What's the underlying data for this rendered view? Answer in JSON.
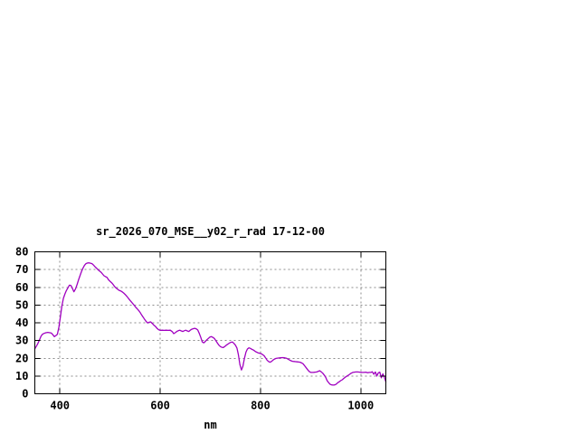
{
  "window": {
    "background": "#ffffff"
  },
  "chart_data": {
    "type": "line",
    "title": "sr_2026_070_MSE__y02_r_rad 17-12-00",
    "xlabel": "nm",
    "ylabel": "",
    "xlim": [
      350,
      1050
    ],
    "ylim": [
      0,
      80
    ],
    "xticks": [
      400,
      600,
      800,
      1000
    ],
    "yticks": [
      0,
      10,
      20,
      30,
      40,
      50,
      60,
      70,
      80
    ],
    "grid": true,
    "legend": "none",
    "colors": {
      "line": "#a000c0",
      "grid": "#8c8c8c",
      "frame": "#000000",
      "text": "#000000",
      "background": "#ffffff"
    },
    "series": [
      {
        "name": "sr_2026_070_MSE__y02_r_rad",
        "points": [
          [
            350,
            25.3
          ],
          [
            353,
            26.8
          ],
          [
            356,
            28.3
          ],
          [
            359,
            30.2
          ],
          [
            362,
            32.3
          ],
          [
            365,
            33.5
          ],
          [
            368,
            34.0
          ],
          [
            372,
            34.4
          ],
          [
            376,
            34.6
          ],
          [
            380,
            34.4
          ],
          [
            383,
            34.2
          ],
          [
            386,
            33.2
          ],
          [
            389,
            32.2
          ],
          [
            392,
            32.8
          ],
          [
            395,
            33.5
          ],
          [
            398,
            37.5
          ],
          [
            401,
            43.5
          ],
          [
            404,
            49.5
          ],
          [
            407,
            53.8
          ],
          [
            410,
            56.3
          ],
          [
            413,
            58.2
          ],
          [
            416,
            59.7
          ],
          [
            419,
            61.2
          ],
          [
            422,
            61.0
          ],
          [
            425,
            59.3
          ],
          [
            428,
            57.5
          ],
          [
            431,
            59.0
          ],
          [
            434,
            61.4
          ],
          [
            437,
            64.0
          ],
          [
            440,
            66.5
          ],
          [
            443,
            68.8
          ],
          [
            446,
            70.8
          ],
          [
            449,
            72.4
          ],
          [
            452,
            73.3
          ],
          [
            455,
            73.7
          ],
          [
            458,
            73.8
          ],
          [
            461,
            73.6
          ],
          [
            464,
            73.3
          ],
          [
            467,
            72.5
          ],
          [
            470,
            71.6
          ],
          [
            473,
            70.8
          ],
          [
            476,
            69.9
          ],
          [
            479,
            69.2
          ],
          [
            482,
            68.5
          ],
          [
            485,
            67.5
          ],
          [
            488,
            66.5
          ],
          [
            491,
            66.0
          ],
          [
            494,
            65.6
          ],
          [
            497,
            64.2
          ],
          [
            500,
            63.4
          ],
          [
            503,
            62.6
          ],
          [
            506,
            61.6
          ],
          [
            509,
            60.5
          ],
          [
            512,
            59.6
          ],
          [
            515,
            58.9
          ],
          [
            518,
            58.3
          ],
          [
            521,
            58.0
          ],
          [
            524,
            57.5
          ],
          [
            527,
            56.8
          ],
          [
            530,
            56.0
          ],
          [
            533,
            55.1
          ],
          [
            536,
            54.0
          ],
          [
            539,
            52.9
          ],
          [
            542,
            51.9
          ],
          [
            545,
            50.9
          ],
          [
            548,
            50.0
          ],
          [
            551,
            48.8
          ],
          [
            554,
            47.9
          ],
          [
            557,
            47.0
          ],
          [
            560,
            45.8
          ],
          [
            563,
            44.4
          ],
          [
            566,
            43.2
          ],
          [
            569,
            41.9
          ],
          [
            572,
            40.7
          ],
          [
            575,
            39.9
          ],
          [
            578,
            40.3
          ],
          [
            581,
            40.5
          ],
          [
            584,
            39.7
          ],
          [
            588,
            38.5
          ],
          [
            591,
            37.8
          ],
          [
            594,
            36.8
          ],
          [
            597,
            36.1
          ],
          [
            600,
            35.7
          ],
          [
            604,
            35.8
          ],
          [
            608,
            35.7
          ],
          [
            612,
            35.8
          ],
          [
            616,
            35.7
          ],
          [
            620,
            35.8
          ],
          [
            624,
            35.0
          ],
          [
            627,
            33.9
          ],
          [
            630,
            34.4
          ],
          [
            633,
            35.1
          ],
          [
            636,
            35.5
          ],
          [
            639,
            35.8
          ],
          [
            642,
            35.4
          ],
          [
            645,
            35.1
          ],
          [
            648,
            35.5
          ],
          [
            651,
            35.8
          ],
          [
            654,
            35.4
          ],
          [
            657,
            35.1
          ],
          [
            660,
            35.8
          ],
          [
            663,
            36.4
          ],
          [
            666,
            36.7
          ],
          [
            669,
            36.9
          ],
          [
            672,
            36.6
          ],
          [
            675,
            35.9
          ],
          [
            678,
            34.0
          ],
          [
            681,
            31.7
          ],
          [
            684,
            29.2
          ],
          [
            687,
            28.7
          ],
          [
            690,
            29.5
          ],
          [
            693,
            30.4
          ],
          [
            696,
            31.2
          ],
          [
            699,
            31.9
          ],
          [
            702,
            32.2
          ],
          [
            705,
            31.8
          ],
          [
            708,
            31.2
          ],
          [
            711,
            29.9
          ],
          [
            714,
            28.6
          ],
          [
            717,
            27.4
          ],
          [
            720,
            26.6
          ],
          [
            723,
            26.2
          ],
          [
            726,
            26.1
          ],
          [
            729,
            26.7
          ],
          [
            732,
            27.4
          ],
          [
            735,
            28.0
          ],
          [
            738,
            28.6
          ],
          [
            741,
            29.0
          ],
          [
            744,
            29.2
          ],
          [
            747,
            28.4
          ],
          [
            750,
            27.4
          ],
          [
            753,
            25.8
          ],
          [
            756,
            22.0
          ],
          [
            759,
            16.4
          ],
          [
            762,
            13.4
          ],
          [
            765,
            15.5
          ],
          [
            768,
            20.0
          ],
          [
            771,
            23.5
          ],
          [
            774,
            25.2
          ],
          [
            777,
            25.9
          ],
          [
            780,
            25.6
          ],
          [
            783,
            25.0
          ],
          [
            786,
            24.6
          ],
          [
            789,
            24.0
          ],
          [
            792,
            23.5
          ],
          [
            795,
            23.1
          ],
          [
            798,
            22.9
          ],
          [
            801,
            22.6
          ],
          [
            804,
            22.1
          ],
          [
            807,
            21.5
          ],
          [
            810,
            20.3
          ],
          [
            813,
            19.0
          ],
          [
            816,
            18.2
          ],
          [
            819,
            17.8
          ],
          [
            822,
            18.2
          ],
          [
            825,
            19.0
          ],
          [
            828,
            19.5
          ],
          [
            831,
            19.9
          ],
          [
            834,
            20.1
          ],
          [
            837,
            20.2
          ],
          [
            840,
            20.3
          ],
          [
            844,
            20.4
          ],
          [
            848,
            20.3
          ],
          [
            852,
            20.0
          ],
          [
            855,
            19.5
          ],
          [
            858,
            19.0
          ],
          [
            861,
            18.6
          ],
          [
            864,
            18.3
          ],
          [
            867,
            18.2
          ],
          [
            870,
            18.1
          ],
          [
            873,
            18.0
          ],
          [
            876,
            17.9
          ],
          [
            879,
            17.8
          ],
          [
            882,
            17.4
          ],
          [
            885,
            16.9
          ],
          [
            888,
            15.8
          ],
          [
            891,
            14.7
          ],
          [
            894,
            13.6
          ],
          [
            897,
            12.6
          ],
          [
            900,
            12.1
          ],
          [
            903,
            12.0
          ],
          [
            906,
            12.1
          ],
          [
            909,
            12.2
          ],
          [
            912,
            12.3
          ],
          [
            915,
            12.6
          ],
          [
            918,
            13.0
          ],
          [
            921,
            12.4
          ],
          [
            924,
            11.6
          ],
          [
            927,
            10.6
          ],
          [
            930,
            9.3
          ],
          [
            933,
            7.4
          ],
          [
            936,
            6.2
          ],
          [
            939,
            5.3
          ],
          [
            942,
            5.0
          ],
          [
            945,
            4.9
          ],
          [
            948,
            5.0
          ],
          [
            951,
            5.4
          ],
          [
            954,
            6.2
          ],
          [
            957,
            6.8
          ],
          [
            960,
            7.4
          ],
          [
            963,
            7.9
          ],
          [
            966,
            8.6
          ],
          [
            969,
            9.3
          ],
          [
            972,
            9.9
          ],
          [
            975,
            10.4
          ],
          [
            978,
            11.0
          ],
          [
            981,
            11.6
          ],
          [
            984,
            12.0
          ],
          [
            987,
            12.2
          ],
          [
            990,
            12.3
          ],
          [
            994,
            12.3
          ],
          [
            998,
            12.2
          ],
          [
            1002,
            12.1
          ],
          [
            1006,
            12.0
          ],
          [
            1010,
            12.2
          ],
          [
            1014,
            11.8
          ],
          [
            1017,
            12.0
          ],
          [
            1020,
            12.0
          ],
          [
            1023,
            12.4
          ],
          [
            1026,
            11.0
          ],
          [
            1029,
            12.3
          ],
          [
            1032,
            10.0
          ],
          [
            1035,
            11.8
          ],
          [
            1038,
            12.2
          ],
          [
            1041,
            9.0
          ],
          [
            1044,
            11.2
          ],
          [
            1047,
            9.5
          ],
          [
            1050,
            6.8
          ]
        ]
      }
    ]
  }
}
